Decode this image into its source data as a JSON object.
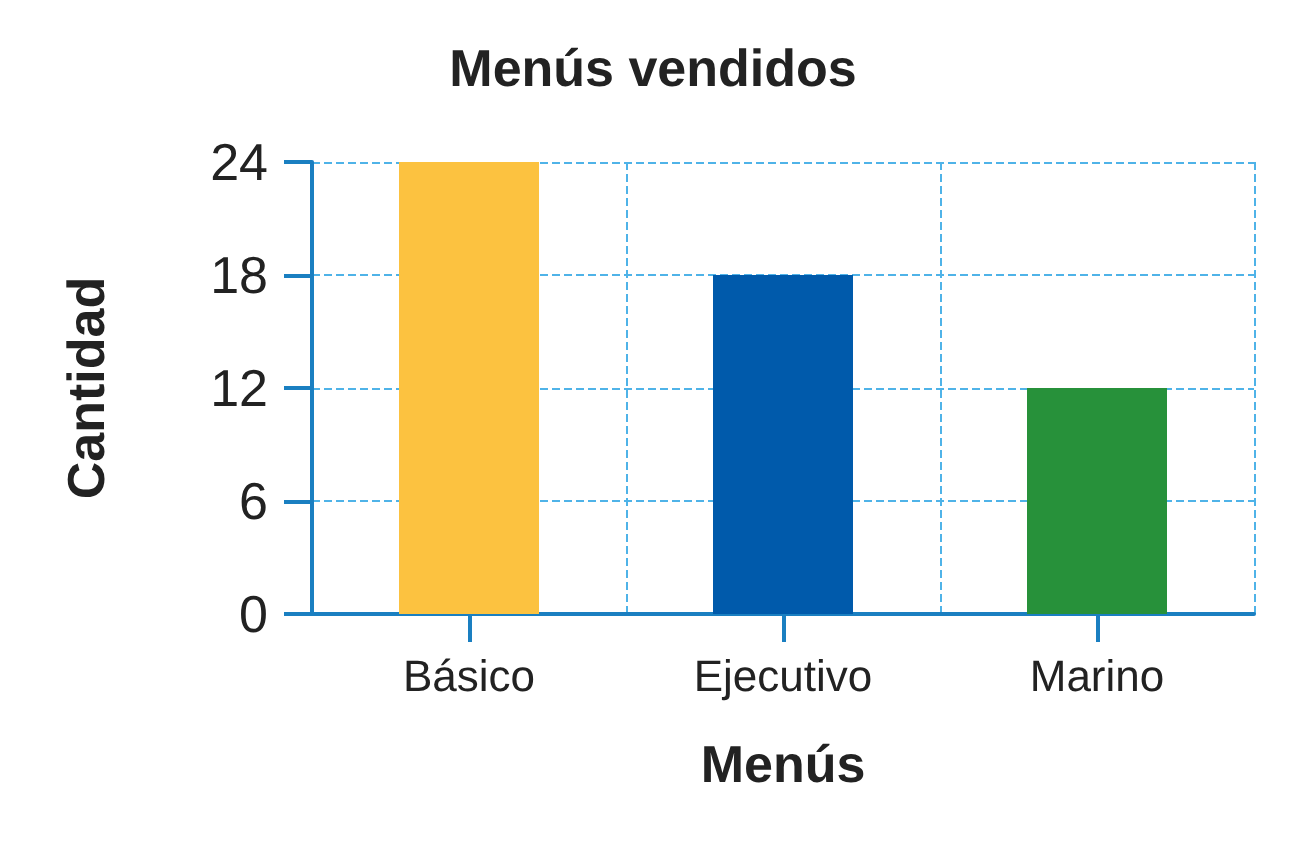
{
  "chart_data": {
    "type": "bar",
    "title": "Menús vendidos",
    "xlabel": "Menús",
    "ylabel": "Cantidad",
    "categories": [
      "Básico",
      "Ejecutivo",
      "Marino"
    ],
    "values": [
      24,
      18,
      12
    ],
    "colors": [
      "#fcc240",
      "#005aab",
      "#27913a"
    ],
    "ylim": [
      0,
      24
    ],
    "yticks": [
      0,
      6,
      12,
      18,
      24
    ],
    "grid": true
  }
}
